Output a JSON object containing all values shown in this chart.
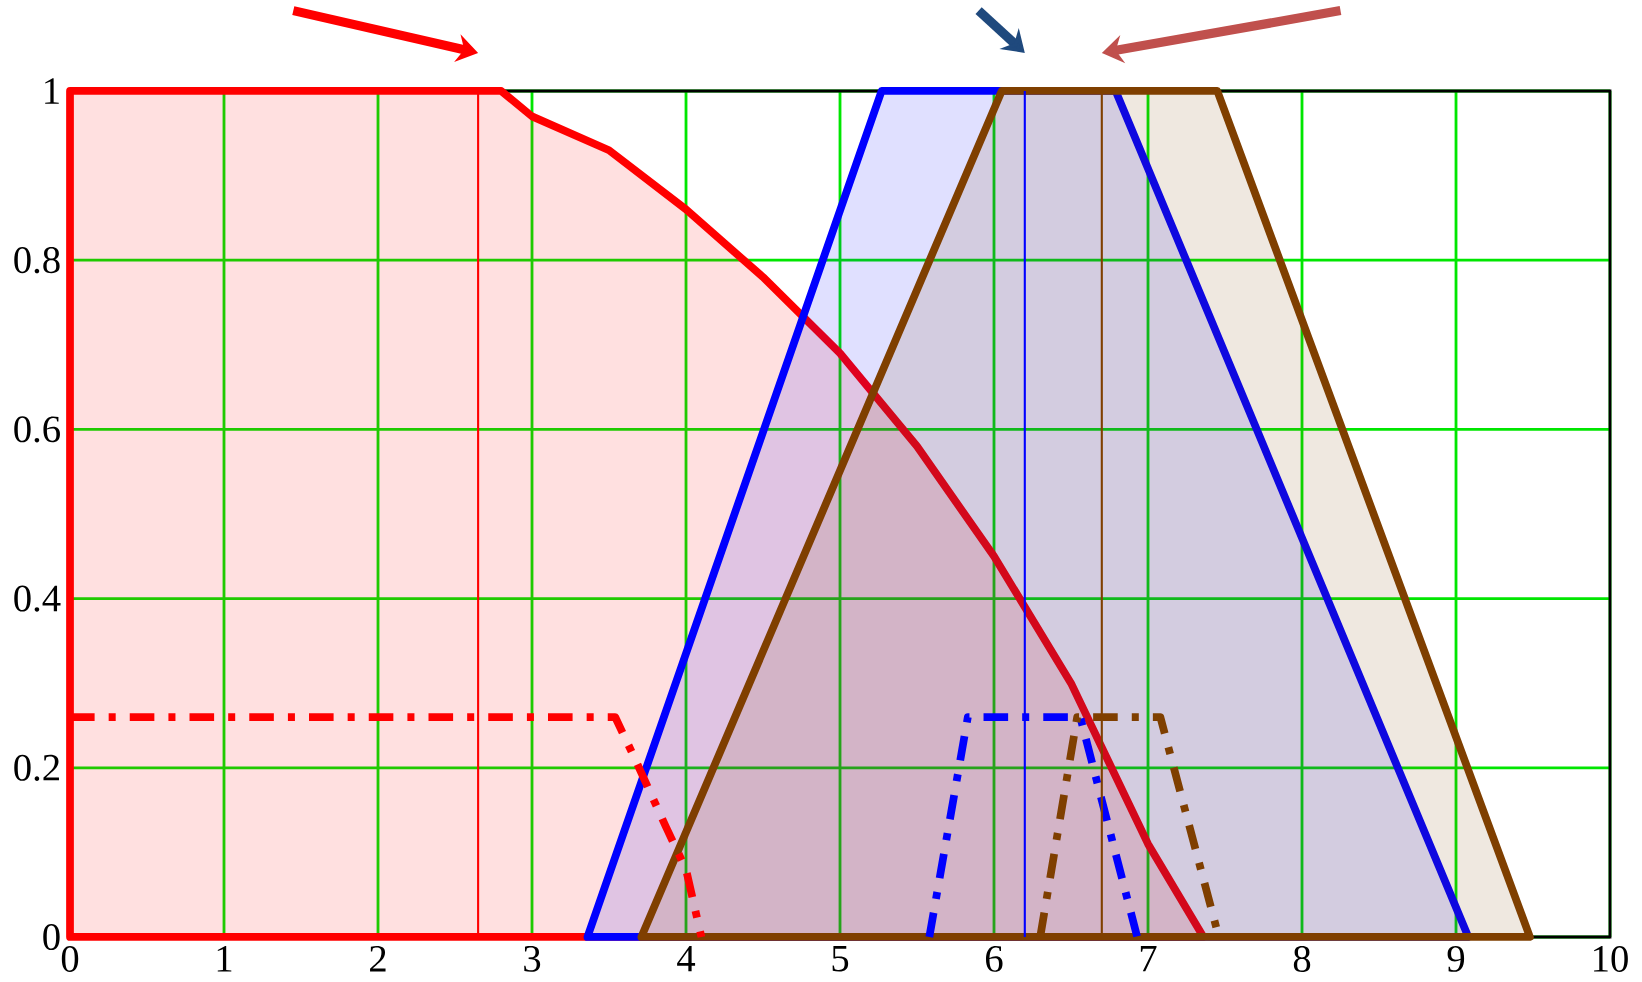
{
  "chart_data": {
    "type": "area",
    "series": [
      {
        "color": "#ff0000",
        "x": [
          0,
          2.6,
          2.8,
          3,
          3.5,
          4,
          4.5,
          5,
          5.5,
          6,
          6.5,
          7,
          7.36
        ],
        "values": [
          1,
          1,
          1,
          0.97,
          0.93,
          0.86,
          0.78,
          0.69,
          0.58,
          0.45,
          0.3,
          0.11,
          0
        ]
      },
      {
        "color": "#0000ff",
        "x": [
          3.36,
          5.27,
          6.79,
          9.08
        ],
        "values": [
          0,
          1,
          1,
          0
        ]
      },
      {
        "color": "#7f3f00",
        "x": [
          3.71,
          6.05,
          7.45,
          9.48
        ],
        "values": [
          0,
          1,
          1,
          0
        ]
      },
      {
        "type": "line",
        "line_style": "dashed",
        "color": "#ff0000",
        "x": [
          0,
          3.54,
          3.67,
          3.87,
          4.0,
          4.1
        ],
        "values": [
          0.26,
          0.26,
          0.21,
          0.13,
          0.08,
          0
        ]
      },
      {
        "type": "line",
        "line_style": "dashed",
        "color": "#0000ff",
        "x": [
          5.58,
          5.83,
          6.56,
          6.93
        ],
        "values": [
          0,
          0.26,
          0.26,
          0
        ]
      },
      {
        "type": "line",
        "line_style": "dashed",
        "color": "#7f3f00",
        "x": [
          6.3,
          6.54,
          7.08,
          7.46
        ],
        "values": [
          0,
          0.26,
          0.26,
          0
        ]
      }
    ],
    "xlim": [
      0,
      10
    ],
    "ylim": [
      0,
      1
    ],
    "xticks": [
      0,
      1,
      2,
      3,
      4,
      5,
      6,
      7,
      8,
      9,
      10
    ],
    "yticks": [
      0,
      0.2,
      0.4,
      0.6,
      0.8,
      1
    ],
    "grid": true,
    "ref_lines": [
      {
        "axis": "x",
        "value": 2.65,
        "color": "#ff0000"
      },
      {
        "axis": "x",
        "value": 6.2,
        "color": "#0000ff"
      },
      {
        "axis": "x",
        "value": 6.7,
        "color": "#7f3f00"
      }
    ]
  }
}
